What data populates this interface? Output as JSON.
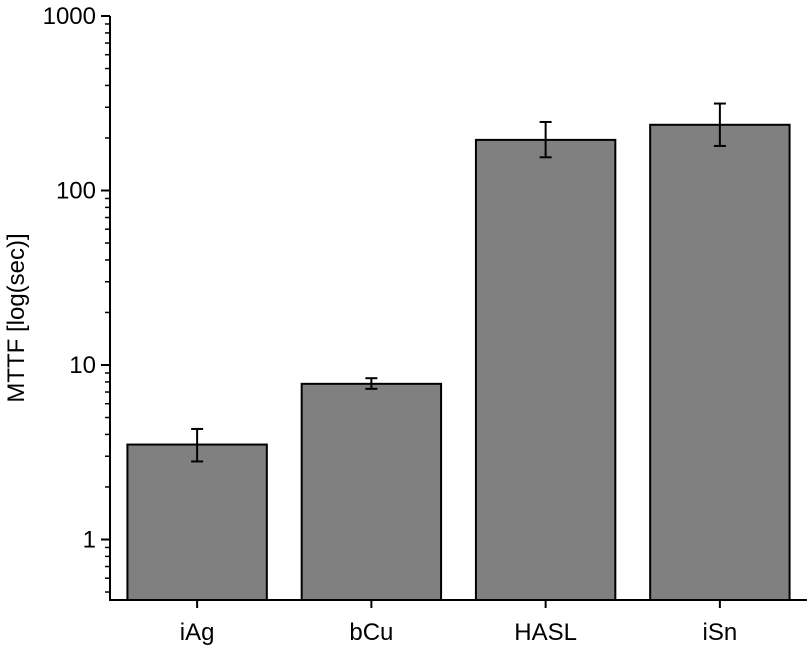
{
  "chart_data": {
    "type": "bar",
    "title": "",
    "xlabel": "",
    "ylabel": "MTTF [log(sec)]",
    "y_scale": "log",
    "ylim": [
      0.45,
      1000
    ],
    "y_ticks": [
      1,
      10,
      100,
      1000
    ],
    "y_tick_labels": [
      "1",
      "10",
      "100",
      "1000"
    ],
    "categories": [
      "iAg",
      "bCu",
      "HASL",
      "iSn"
    ],
    "values": [
      3.5,
      7.8,
      195,
      238
    ],
    "error_low": [
      2.8,
      7.3,
      155,
      180
    ],
    "error_high": [
      4.3,
      8.4,
      247,
      315
    ],
    "grid": false,
    "bar_color": "#808080",
    "bar_edge_color": "#000000"
  }
}
